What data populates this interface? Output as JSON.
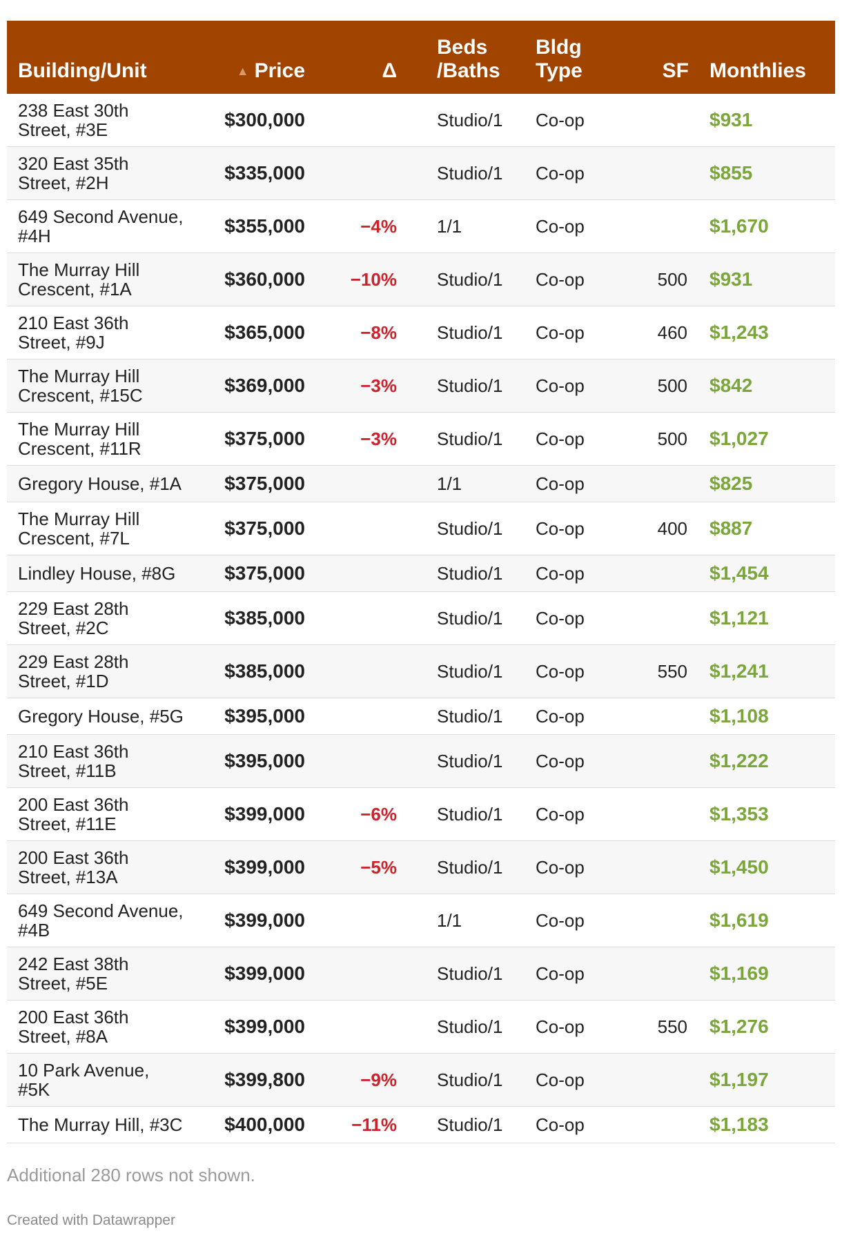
{
  "columns": {
    "building": "Building/Unit",
    "price_sort_icon": "▲",
    "price": "Price",
    "delta": "Δ",
    "beds_line1": "Beds",
    "beds_line2": "/Baths",
    "type_line1": "Bldg",
    "type_line2": "Type",
    "sf": "SF",
    "monthlies": "Monthlies"
  },
  "colors": {
    "header_bg": "#a14400",
    "delta": "#d0202a",
    "monthlies": "#7aa63a"
  },
  "rows": [
    {
      "bldg_line1": "238 East 30th",
      "bldg_line2": "Street, #3E",
      "price": "$300,000",
      "delta": "",
      "beds": "Studio/1",
      "type": "Co-op",
      "sf": "",
      "monthlies": "$931"
    },
    {
      "bldg_line1": "320 East 35th",
      "bldg_line2": "Street, #2H",
      "price": "$335,000",
      "delta": "",
      "beds": "Studio/1",
      "type": "Co-op",
      "sf": "",
      "monthlies": "$855"
    },
    {
      "bldg_line1": "649 Second Avenue,",
      "bldg_line2": "#4H",
      "price": "$355,000",
      "delta": "−4%",
      "beds": "1/1",
      "type": "Co-op",
      "sf": "",
      "monthlies": "$1,670"
    },
    {
      "bldg_line1": "The Murray Hill",
      "bldg_line2": "Crescent, #1A",
      "price": "$360,000",
      "delta": "−10%",
      "beds": "Studio/1",
      "type": "Co-op",
      "sf": "500",
      "monthlies": "$931"
    },
    {
      "bldg_line1": "210 East 36th",
      "bldg_line2": "Street, #9J",
      "price": "$365,000",
      "delta": "−8%",
      "beds": "Studio/1",
      "type": "Co-op",
      "sf": "460",
      "monthlies": "$1,243"
    },
    {
      "bldg_line1": "The Murray Hill",
      "bldg_line2": "Crescent, #15C",
      "price": "$369,000",
      "delta": "−3%",
      "beds": "Studio/1",
      "type": "Co-op",
      "sf": "500",
      "monthlies": "$842"
    },
    {
      "bldg_line1": "The Murray Hill",
      "bldg_line2": "Crescent, #11R",
      "price": "$375,000",
      "delta": "−3%",
      "beds": "Studio/1",
      "type": "Co-op",
      "sf": "500",
      "monthlies": "$1,027"
    },
    {
      "bldg_line1": "Gregory House, #1A",
      "bldg_line2": "",
      "price": "$375,000",
      "delta": "",
      "beds": "1/1",
      "type": "Co-op",
      "sf": "",
      "monthlies": "$825"
    },
    {
      "bldg_line1": "The Murray Hill",
      "bldg_line2": "Crescent, #7L",
      "price": "$375,000",
      "delta": "",
      "beds": "Studio/1",
      "type": "Co-op",
      "sf": "400",
      "monthlies": "$887"
    },
    {
      "bldg_line1": "Lindley House, #8G",
      "bldg_line2": "",
      "price": "$375,000",
      "delta": "",
      "beds": "Studio/1",
      "type": "Co-op",
      "sf": "",
      "monthlies": "$1,454"
    },
    {
      "bldg_line1": "229 East 28th",
      "bldg_line2": "Street, #2C",
      "price": "$385,000",
      "delta": "",
      "beds": "Studio/1",
      "type": "Co-op",
      "sf": "",
      "monthlies": "$1,121"
    },
    {
      "bldg_line1": "229 East 28th",
      "bldg_line2": "Street, #1D",
      "price": "$385,000",
      "delta": "",
      "beds": "Studio/1",
      "type": "Co-op",
      "sf": "550",
      "monthlies": "$1,241"
    },
    {
      "bldg_line1": "Gregory House, #5G",
      "bldg_line2": "",
      "price": "$395,000",
      "delta": "",
      "beds": "Studio/1",
      "type": "Co-op",
      "sf": "",
      "monthlies": "$1,108"
    },
    {
      "bldg_line1": "210 East 36th",
      "bldg_line2": "Street, #11B",
      "price": "$395,000",
      "delta": "",
      "beds": "Studio/1",
      "type": "Co-op",
      "sf": "",
      "monthlies": "$1,222"
    },
    {
      "bldg_line1": "200 East 36th",
      "bldg_line2": "Street, #11E",
      "price": "$399,000",
      "delta": "−6%",
      "beds": "Studio/1",
      "type": "Co-op",
      "sf": "",
      "monthlies": "$1,353"
    },
    {
      "bldg_line1": "200 East 36th",
      "bldg_line2": "Street, #13A",
      "price": "$399,000",
      "delta": "−5%",
      "beds": "Studio/1",
      "type": "Co-op",
      "sf": "",
      "monthlies": "$1,450"
    },
    {
      "bldg_line1": "649 Second Avenue,",
      "bldg_line2": "#4B",
      "price": "$399,000",
      "delta": "",
      "beds": "1/1",
      "type": "Co-op",
      "sf": "",
      "monthlies": "$1,619"
    },
    {
      "bldg_line1": "242 East 38th",
      "bldg_line2": "Street, #5E",
      "price": "$399,000",
      "delta": "",
      "beds": "Studio/1",
      "type": "Co-op",
      "sf": "",
      "monthlies": "$1,169"
    },
    {
      "bldg_line1": "200 East 36th",
      "bldg_line2": "Street, #8A",
      "price": "$399,000",
      "delta": "",
      "beds": "Studio/1",
      "type": "Co-op",
      "sf": "550",
      "monthlies": "$1,276"
    },
    {
      "bldg_line1": "10 Park Avenue,",
      "bldg_line2": "#5K",
      "price": "$399,800",
      "delta": "−9%",
      "beds": "Studio/1",
      "type": "Co-op",
      "sf": "",
      "monthlies": "$1,197"
    },
    {
      "bldg_line1": "The Murray Hill, #3C",
      "bldg_line2": "",
      "price": "$400,000",
      "delta": "−11%",
      "beds": "Studio/1",
      "type": "Co-op",
      "sf": "",
      "monthlies": "$1,183"
    }
  ],
  "footer": {
    "note": "Additional 280 rows not shown.",
    "credit": "Created with Datawrapper"
  }
}
